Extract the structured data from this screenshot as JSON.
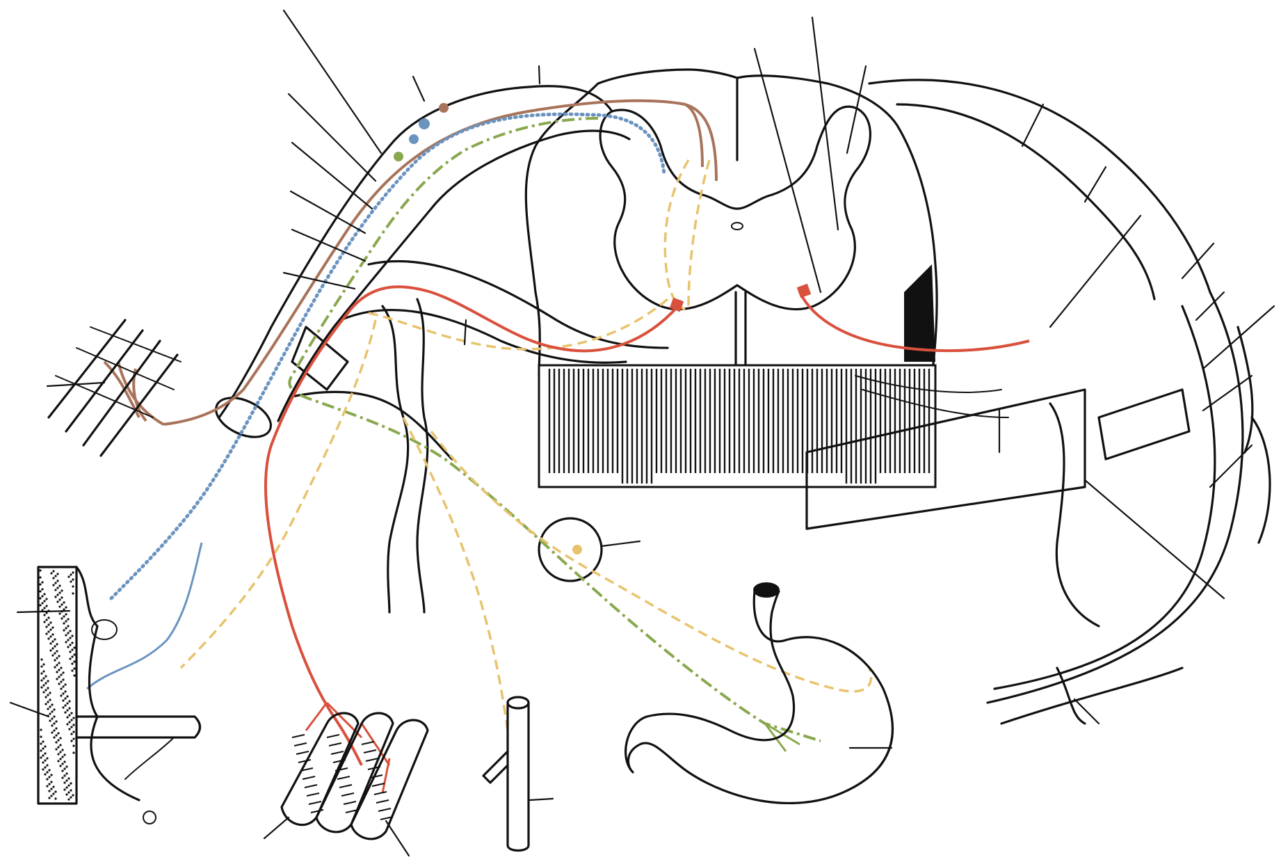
{
  "figure": {
    "labels": [],
    "colors": {
      "ink": "#111111",
      "somatic_sensory": "#a8735a",
      "visceral_sensory": "#6a93c0",
      "preganglionic": "#89a84e",
      "postganglionic": "#e8c36e",
      "motor": "#d9503c",
      "background": "#ffffff"
    },
    "pathways": [
      {
        "name": "somatic-afferent",
        "color_key": "somatic_sensory",
        "style": "solid"
      },
      {
        "name": "visceral-afferent",
        "color_key": "visceral_sensory",
        "style": "dotted"
      },
      {
        "name": "preganglionic-efferent",
        "color_key": "preganglionic",
        "style": "dash-dot"
      },
      {
        "name": "postganglionic-efferent",
        "color_key": "postganglionic",
        "style": "dashed"
      },
      {
        "name": "somatic-efferent",
        "color_key": "motor",
        "style": "solid"
      }
    ]
  }
}
